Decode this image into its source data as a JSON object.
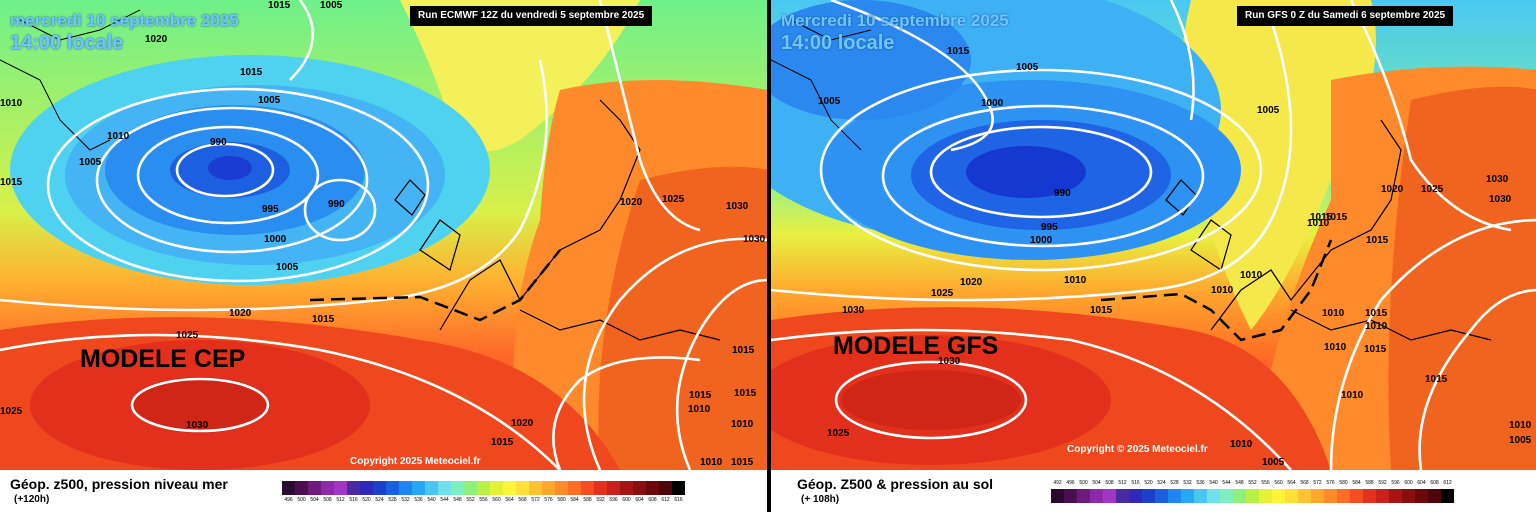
{
  "panels": [
    {
      "date_line1": "mercredi 10 septembre 2025",
      "date_line2": "14:00 locale",
      "run": "Run ECMWF 12Z du vendredi 5 septembre 2025",
      "model": "MODELE CEP",
      "legend_title": "Géop. z500, pression niveau mer",
      "legend_sub": "(+120h)",
      "copyright": "Copyright 2025 Meteociel.fr",
      "isobars": [
        "1015",
        "1020",
        "1010",
        "1015",
        "1005",
        "990",
        "1010",
        "1015",
        "995",
        "990",
        "1000",
        "1005",
        "1020",
        "1015",
        "1025",
        "1030",
        "1025",
        "1020",
        "1015",
        "1025",
        "1030",
        "1030",
        "1015",
        "1015",
        "1015",
        "1010",
        "1010",
        "1010",
        "1005",
        "1015",
        "1005",
        "1020"
      ]
    },
    {
      "date_line1": "Mercredi 10 septembre 2025",
      "date_line2": "14:00 locale",
      "run": "Run GFS 0 Z du Samedi 6 septembre 2025",
      "model": "MODELE GFS",
      "legend_title": "Géop. Z500 & pression au sol",
      "legend_sub": "(+ 108h)",
      "copyright": "Copyright © 2025 Meteociel.fr",
      "isobars": [
        "1015",
        "1005",
        "1005",
        "1000",
        "990",
        "995",
        "1000",
        "1005",
        "1010",
        "1015",
        "1020",
        "1025",
        "1030",
        "1030",
        "1025",
        "1010",
        "1010",
        "1015",
        "1010",
        "1015",
        "1020",
        "1025",
        "1030",
        "1030",
        "1015",
        "1015",
        "1010",
        "1010",
        "1010",
        "1015",
        "1015",
        "1010",
        "1005",
        "1010",
        "1005",
        "1010"
      ]
    }
  ],
  "scale_ticks": [
    "492",
    "496",
    "500",
    "504",
    "508",
    "512",
    "516",
    "520",
    "524",
    "528",
    "532",
    "536",
    "540",
    "544",
    "548",
    "552",
    "556",
    "560",
    "564",
    "568",
    "572",
    "576",
    "580",
    "584",
    "588",
    "592",
    "596",
    "600",
    "604",
    "608",
    "612"
  ],
  "scale_ticks_cep": [
    "496",
    "500",
    "504",
    "508",
    "512",
    "516",
    "520",
    "524",
    "528",
    "532",
    "536",
    "540",
    "544",
    "548",
    "552",
    "556",
    "560",
    "564",
    "568",
    "572",
    "576",
    "580",
    "584",
    "588",
    "592",
    "596",
    "600",
    "604",
    "608",
    "612",
    "616"
  ],
  "scale_colors": [
    "#2a0b2e",
    "#4a0f4e",
    "#6e1a7c",
    "#8e2aa8",
    "#a236c4",
    "#4b2aa0",
    "#3028b8",
    "#1e3ecc",
    "#1a5fe0",
    "#1e86f0",
    "#28a8f4",
    "#4ac6f2",
    "#6ee0ea",
    "#7ef0c0",
    "#8ef07a",
    "#b6f246",
    "#e4f236",
    "#fff43a",
    "#ffe03a",
    "#ffc234",
    "#ffa82e",
    "#ff8c2a",
    "#ff6e26",
    "#f54e22",
    "#e2321e",
    "#c8201a",
    "#a81414",
    "#8a0e10",
    "#6c080c",
    "#4e0408",
    "#000000"
  ],
  "colors": {
    "accent_date": "#6ec6ff",
    "isobar": "#ffffff"
  }
}
